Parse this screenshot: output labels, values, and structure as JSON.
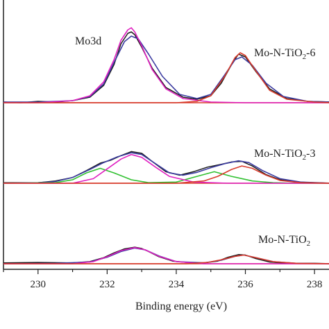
{
  "chart_data": {
    "type": "line",
    "title": "",
    "xlabel": "Binding energy (eV)",
    "ylabel": "",
    "xlim": [
      229,
      238.5
    ],
    "x_reversed": false,
    "xticks": [
      230,
      232,
      234,
      236,
      238
    ],
    "grid": false,
    "legend": "none",
    "annotation": "Mo3d",
    "spectra": [
      {
        "label": "Mo-N-TiO",
        "label_sub": "2",
        "label_tail": "-6",
        "max_y": 110,
        "series": [
          {
            "name": "",
            "color": "#1a1a1a",
            "x": [
              229.0,
              229.5,
              230.0,
              230.5,
              231.0,
              231.5,
              231.9,
              232.2,
              232.4,
              232.6,
              232.7,
              232.8,
              233.0,
              233.3,
              233.7,
              234.2,
              234.6,
              235.0,
              235.3,
              235.6,
              235.8,
              236.0,
              236.3,
              236.7,
              237.2,
              237.8,
              238.5
            ],
            "y": [
              1,
              0,
              2,
              1,
              3,
              8,
              25,
              55,
              85,
              100,
              102,
              98,
              80,
              50,
              22,
              8,
              5,
              10,
              28,
              55,
              70,
              66,
              45,
              20,
              6,
              2,
              1
            ]
          },
          {
            "name": "",
            "color": "#3a3aa0",
            "x": [
              229.0,
              230.0,
              231.0,
              231.5,
              231.9,
              232.2,
              232.5,
              232.7,
              232.9,
              233.2,
              233.6,
              234.1,
              234.6,
              235.0,
              235.4,
              235.7,
              235.9,
              236.2,
              236.6,
              237.1,
              237.8,
              238.5
            ],
            "y": [
              1,
              1,
              3,
              9,
              27,
              58,
              88,
              96,
              92,
              70,
              38,
              12,
              6,
              12,
              40,
              62,
              66,
              54,
              28,
              9,
              2,
              1
            ]
          },
          {
            "name": "",
            "color": "#e020c0",
            "x": [
              229.0,
              230.0,
              231.0,
              231.5,
              231.9,
              232.2,
              232.4,
              232.6,
              232.7,
              232.8,
              233.0,
              233.3,
              233.7,
              234.2,
              235.0,
              236.0,
              237.0,
              238.5
            ],
            "y": [
              0,
              0,
              3,
              10,
              30,
              62,
              90,
              105,
              108,
              102,
              82,
              48,
              20,
              6,
              1,
              0,
              0,
              0
            ]
          },
          {
            "name": "",
            "color": "#d83a2a",
            "x": [
              229.0,
              234.0,
              234.6,
              235.0,
              235.4,
              235.7,
              235.85,
              236.0,
              236.3,
              236.7,
              237.2,
              238.0,
              238.5
            ],
            "y": [
              0,
              0,
              2,
              10,
              38,
              65,
              72,
              68,
              46,
              18,
              5,
              1,
              0
            ]
          }
        ]
      },
      {
        "label": "Mo-N-TiO",
        "label_sub": "2",
        "label_tail": "-3",
        "max_y": 70,
        "series": [
          {
            "name": "",
            "color": "#1a1a1a",
            "x": [
              229.0,
              230.0,
              230.5,
              231.0,
              231.4,
              231.8,
              232.1,
              232.4,
              232.7,
              233.0,
              233.3,
              233.7,
              234.1,
              234.5,
              234.9,
              235.3,
              235.6,
              235.9,
              236.2,
              236.6,
              237.0,
              237.5,
              238.0,
              238.5
            ],
            "y": [
              1,
              1,
              4,
              10,
              22,
              35,
              40,
              48,
              55,
              52,
              38,
              20,
              14,
              20,
              28,
              33,
              37,
              38,
              30,
              15,
              6,
              2,
              1,
              0
            ]
          },
          {
            "name": "",
            "color": "#3a3aa0",
            "x": [
              229.0,
              230.0,
              230.5,
              231.0,
              231.5,
              231.9,
              232.3,
              232.7,
              233.0,
              233.4,
              233.8,
              234.2,
              234.6,
              235.0,
              235.4,
              235.8,
              236.1,
              236.5,
              237.0,
              237.6,
              238.5
            ],
            "y": [
              0,
              1,
              3,
              10,
              24,
              36,
              46,
              53,
              50,
              34,
              18,
              14,
              19,
              27,
              34,
              39,
              36,
              22,
              8,
              2,
              0
            ]
          },
          {
            "name": "",
            "color": "#30c030",
            "x": [
              229.0,
              230.5,
              231.0,
              231.4,
              231.8,
              232.2,
              232.7,
              233.2,
              234.0,
              234.6,
              235.1,
              235.6,
              236.2,
              236.8,
              237.5,
              238.5
            ],
            "y": [
              0,
              1,
              6,
              18,
              26,
              18,
              6,
              1,
              2,
              12,
              20,
              12,
              4,
              1,
              0,
              0
            ]
          },
          {
            "name": "",
            "color": "#e020c0",
            "x": [
              229.0,
              231.0,
              231.6,
              232.0,
              232.4,
              232.7,
              233.0,
              233.4,
              233.8,
              234.5,
              235.5,
              238.5
            ],
            "y": [
              0,
              0,
              8,
              25,
              42,
              50,
              45,
              28,
              12,
              2,
              0,
              0
            ]
          },
          {
            "name": "",
            "color": "#d83a2a",
            "x": [
              229.0,
              234.0,
              234.8,
              235.2,
              235.6,
              235.9,
              236.2,
              236.6,
              237.0,
              237.6,
              238.5
            ],
            "y": [
              0,
              0,
              4,
              12,
              24,
              30,
              26,
              14,
              5,
              1,
              0
            ]
          }
        ]
      },
      {
        "label": "Mo-N-TiO",
        "label_sub": "2",
        "label_tail": "",
        "max_y": 70,
        "series": [
          {
            "name": "",
            "color": "#1a1a1a",
            "x": [
              229.0,
              230.0,
              231.0,
              231.5,
              231.9,
              232.2,
              232.5,
              232.8,
              233.0,
              233.2,
              233.5,
              233.9,
              234.3,
              234.8,
              235.2,
              235.5,
              235.8,
              236.0,
              236.3,
              236.7,
              237.2,
              238.0,
              238.5
            ],
            "y": [
              2,
              3,
              2,
              5,
              14,
              25,
              34,
              38,
              35,
              28,
              16,
              6,
              3,
              2,
              6,
              15,
              21,
              20,
              12,
              4,
              1,
              1,
              0
            ]
          },
          {
            "name": "",
            "color": "#3a3aa0",
            "x": [
              229.0,
              230.5,
              231.5,
              232.0,
              232.4,
              232.8,
              233.1,
              233.5,
              234.0,
              234.8,
              235.3,
              235.7,
              235.95,
              236.3,
              236.8,
              237.5,
              238.5
            ],
            "y": [
              0,
              1,
              4,
              15,
              28,
              36,
              32,
              18,
              5,
              2,
              8,
              17,
              20,
              14,
              5,
              1,
              0
            ]
          },
          {
            "name": "",
            "color": "#e020c0",
            "x": [
              229.0,
              231.0,
              231.6,
              232.0,
              232.4,
              232.8,
              233.1,
              233.5,
              234.0,
              234.8,
              238.5
            ],
            "y": [
              0,
              0,
              5,
              16,
              30,
              37,
              32,
              17,
              5,
              0,
              0
            ]
          },
          {
            "name": "",
            "color": "#d83a2a",
            "x": [
              229.0,
              234.3,
              234.9,
              235.3,
              235.7,
              235.95,
              236.3,
              236.8,
              237.5,
              238.5
            ],
            "y": [
              0,
              0,
              3,
              9,
              17,
              20,
              14,
              5,
              1,
              0
            ]
          }
        ]
      }
    ]
  }
}
